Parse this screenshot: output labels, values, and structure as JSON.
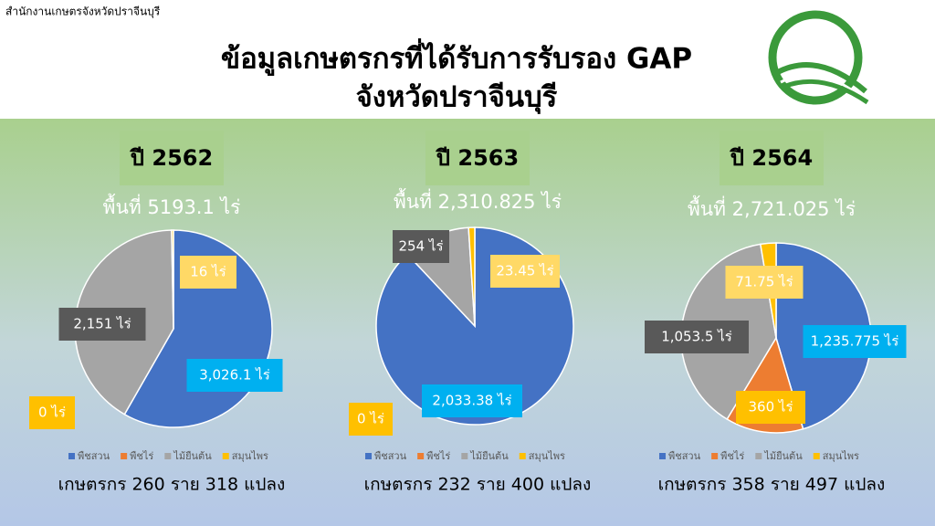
{
  "header": {
    "org": "สำนักงานเกษตรจังหวัดปราจีนบุรี",
    "title": "ข้อมูลเกษตรกรที่ได้รับการรับรอง GAP",
    "subtitle": "จังหวัดปราจีนบุรี"
  },
  "chart_data": [
    {
      "type": "pie",
      "title": "ปี 2562",
      "subtitle": "พื้นที่ 5193.1 ไร่",
      "categories": [
        "พืชสวน",
        "พืชไร่",
        "ไม้ยืนต้น",
        "สมุนไพร"
      ],
      "values": [
        3026.1,
        0,
        2151,
        16
      ],
      "value_labels": [
        "3,026.1 ไร่",
        "0 ไร่",
        "2,151 ไร่",
        "16 ไร่"
      ],
      "colors": [
        "#4472c4",
        "#ed7d31",
        "#a5a5a5",
        "#ffc000"
      ],
      "annotation": "เกษตรกร 260 ราย 318 แปลง"
    },
    {
      "type": "pie",
      "title": "ปี 2563",
      "subtitle": "พื้นที่ 2,310.825 ไร่",
      "categories": [
        "พืชสวน",
        "พืชไร่",
        "ไม้ยืนต้น",
        "สมุนไพร"
      ],
      "values": [
        2033.38,
        0,
        254,
        23.45
      ],
      "value_labels": [
        "2,033.38 ไร่",
        "0 ไร่",
        "254 ไร่",
        "23.45 ไร่"
      ],
      "colors": [
        "#4472c4",
        "#ed7d31",
        "#a5a5a5",
        "#ffc000"
      ],
      "annotation": "เกษตรกร 232 ราย 400 แปลง"
    },
    {
      "type": "pie",
      "title": "ปี 2564",
      "subtitle": "พื้นที่ 2,721.025 ไร่",
      "categories": [
        "พืชสวน",
        "พืชไร่",
        "ไม้ยืนต้น",
        "สมุนไพร"
      ],
      "values": [
        1235.775,
        360,
        1053.5,
        71.75
      ],
      "value_labels": [
        "1,235.775 ไร่",
        "360 ไร่",
        "1,053.5 ไร่",
        "71.75 ไร่"
      ],
      "colors": [
        "#4472c4",
        "#ed7d31",
        "#a5a5a5",
        "#ffc000"
      ],
      "annotation": "เกษตรกร 358 ราย 497 แปลง"
    }
  ]
}
